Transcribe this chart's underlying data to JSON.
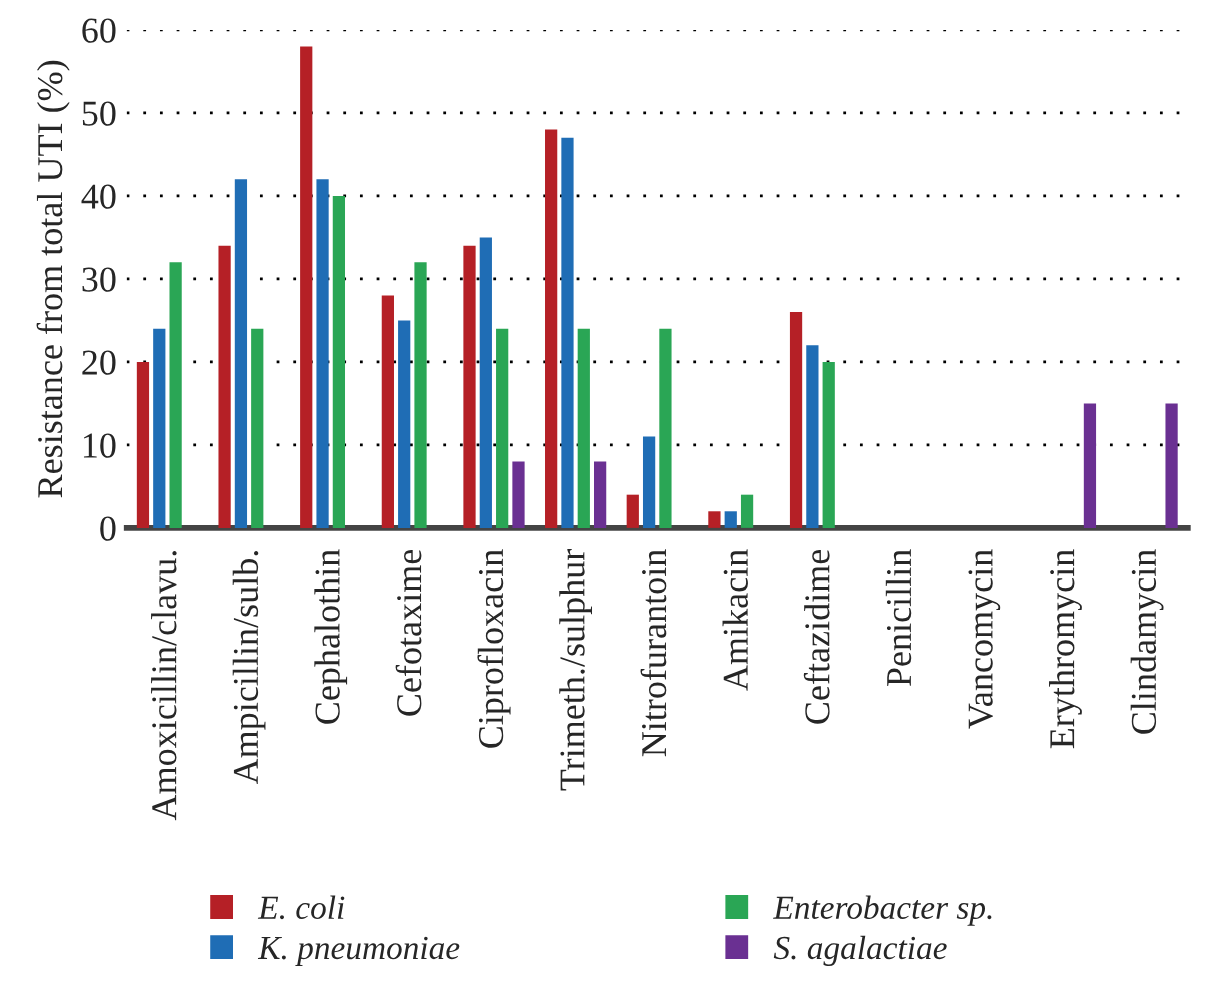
{
  "chart_data": {
    "type": "bar",
    "ylabel": "Resistance from total UTI (%)",
    "categories": [
      "Amoxicillin/clavu.",
      "Ampicillin/sulb.",
      "Cephalothin",
      "Cefotaxime",
      "Ciprofloxacin",
      "Trimeth./sulphur",
      "Nitrofurantoin",
      "Amikacin",
      "Ceftazidime",
      "Penicillin",
      "Vancomycin",
      "Erythromycin",
      "Clindamycin"
    ],
    "series": [
      {
        "name": "E. coli",
        "color": "#b52026",
        "values": [
          20,
          34,
          58,
          28,
          34,
          48,
          4,
          2,
          26,
          null,
          null,
          null,
          null
        ]
      },
      {
        "name": "K. pneumoniae",
        "color": "#1f6db5",
        "values": [
          24,
          42,
          42,
          25,
          35,
          47,
          11,
          2,
          22,
          null,
          null,
          null,
          null
        ]
      },
      {
        "name": "Enterobacter sp.",
        "color": "#2aa655",
        "values": [
          32,
          24,
          40,
          32,
          24,
          24,
          24,
          4,
          20,
          null,
          null,
          null,
          null
        ]
      },
      {
        "name": "S. agalactiae",
        "color": "#6a3092",
        "values": [
          null,
          null,
          null,
          null,
          8,
          8,
          null,
          null,
          null,
          null,
          null,
          15,
          15
        ]
      }
    ],
    "ylim": [
      0,
      60
    ],
    "yticks": [
      0,
      10,
      20,
      30,
      40,
      50,
      60
    ],
    "grid": "y",
    "legend": "bottom"
  }
}
